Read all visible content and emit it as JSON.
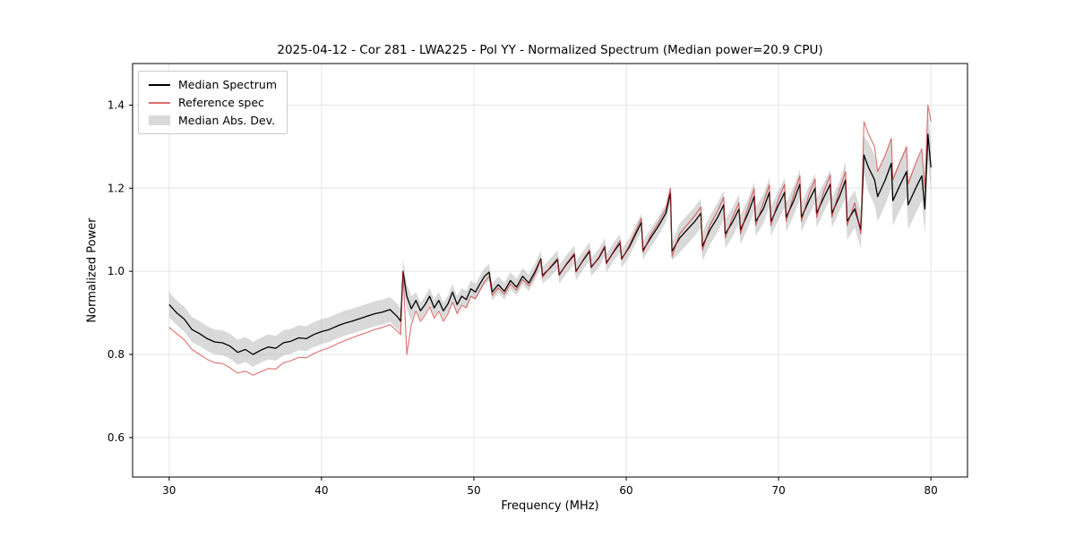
{
  "figure": {
    "title": "2025-04-12 - Cor 281 - LWA225 - Pol YY - Normalized Spectrum (Median power=20.9 CPU)",
    "xlabel": "Frequency (MHz)",
    "ylabel": "Normalized Power"
  },
  "legend": {
    "entries": [
      {
        "label": "Median Spectrum",
        "type": "line",
        "color": "#000000",
        "opacity": 1.0
      },
      {
        "label": "Reference spec",
        "type": "line",
        "color": "#cc2222",
        "opacity": 0.65
      },
      {
        "label": "Median Abs. Dev.",
        "type": "patch",
        "color": "#aaaaaa",
        "opacity": 0.45
      }
    ]
  },
  "chart_data": {
    "type": "line",
    "title": "2025-04-12 - Cor 281 - LWA225 - Pol YY - Normalized Spectrum (Median power=20.9 CPU)",
    "xlabel": "Frequency (MHz)",
    "ylabel": "Normalized Power",
    "xlim": [
      27.6,
      82.4
    ],
    "ylim": [
      0.505,
      1.5
    ],
    "xticks": [
      30,
      40,
      50,
      60,
      70,
      80
    ],
    "yticks": [
      0.6,
      0.8,
      1.0,
      1.2,
      1.4
    ],
    "grid": true,
    "grid_color": "#e5e5e5",
    "x": [
      30.0,
      30.5,
      31.0,
      31.5,
      32.0,
      32.5,
      33.0,
      33.5,
      34.0,
      34.5,
      35.0,
      35.5,
      36.0,
      36.5,
      37.0,
      37.5,
      38.0,
      38.5,
      39.0,
      39.5,
      40.0,
      40.5,
      41.0,
      41.5,
      42.0,
      42.5,
      43.0,
      43.5,
      44.0,
      44.5,
      45.0,
      45.2,
      45.35,
      45.6,
      45.9,
      46.2,
      46.5,
      46.8,
      47.1,
      47.4,
      47.7,
      48.0,
      48.3,
      48.6,
      48.9,
      49.2,
      49.5,
      49.8,
      50.1,
      50.4,
      50.7,
      51.0,
      51.2,
      51.6,
      52.0,
      52.4,
      52.8,
      53.2,
      53.6,
      54.0,
      54.4,
      54.5,
      55.0,
      55.5,
      55.6,
      56.1,
      56.6,
      56.7,
      57.2,
      57.6,
      57.7,
      58.2,
      58.6,
      58.7,
      59.2,
      59.6,
      59.7,
      60.2,
      60.6,
      61.0,
      61.1,
      61.6,
      62.1,
      62.6,
      62.9,
      63.0,
      63.5,
      64.0,
      64.5,
      64.9,
      65.0,
      65.5,
      66.0,
      66.4,
      66.5,
      67.0,
      67.4,
      67.5,
      68.0,
      68.4,
      68.5,
      69.0,
      69.4,
      69.5,
      70.0,
      70.4,
      70.5,
      71.0,
      71.4,
      71.5,
      72.0,
      72.4,
      72.5,
      73.0,
      73.4,
      73.5,
      74.0,
      74.4,
      74.5,
      75.0,
      75.4,
      75.6,
      75.9,
      76.3,
      76.5,
      77.0,
      77.4,
      77.5,
      78.0,
      78.4,
      78.5,
      79.0,
      79.4,
      79.6,
      79.8,
      80.0
    ],
    "series": [
      {
        "name": "Median Spectrum",
        "color": "#000000",
        "opacity": 1.0,
        "width": 1.3,
        "values": [
          0.92,
          0.9,
          0.885,
          0.86,
          0.85,
          0.838,
          0.83,
          0.828,
          0.82,
          0.805,
          0.812,
          0.8,
          0.81,
          0.818,
          0.815,
          0.828,
          0.832,
          0.84,
          0.838,
          0.848,
          0.855,
          0.86,
          0.868,
          0.875,
          0.88,
          0.886,
          0.892,
          0.898,
          0.902,
          0.908,
          0.89,
          0.88,
          1.0,
          0.94,
          0.91,
          0.93,
          0.905,
          0.92,
          0.94,
          0.912,
          0.93,
          0.905,
          0.922,
          0.95,
          0.92,
          0.94,
          0.932,
          0.958,
          0.95,
          0.97,
          0.988,
          0.998,
          0.95,
          0.968,
          0.952,
          0.978,
          0.962,
          0.988,
          0.972,
          0.998,
          1.03,
          0.99,
          1.008,
          1.028,
          0.992,
          1.018,
          1.04,
          1.0,
          1.028,
          1.048,
          1.01,
          1.032,
          1.058,
          1.02,
          1.048,
          1.068,
          1.03,
          1.058,
          1.088,
          1.118,
          1.05,
          1.08,
          1.108,
          1.14,
          1.188,
          1.048,
          1.08,
          1.1,
          1.12,
          1.14,
          1.06,
          1.1,
          1.13,
          1.16,
          1.09,
          1.12,
          1.15,
          1.1,
          1.14,
          1.18,
          1.12,
          1.15,
          1.19,
          1.12,
          1.16,
          1.19,
          1.13,
          1.17,
          1.21,
          1.13,
          1.17,
          1.2,
          1.14,
          1.18,
          1.21,
          1.14,
          1.18,
          1.22,
          1.12,
          1.15,
          1.1,
          1.28,
          1.25,
          1.22,
          1.18,
          1.22,
          1.26,
          1.17,
          1.21,
          1.24,
          1.16,
          1.2,
          1.23,
          1.15,
          1.33,
          1.25
        ]
      },
      {
        "name": "Reference spec",
        "color": "#cc2222",
        "opacity": 0.65,
        "width": 1.1,
        "values": [
          0.865,
          0.85,
          0.835,
          0.812,
          0.8,
          0.788,
          0.78,
          0.778,
          0.768,
          0.755,
          0.76,
          0.75,
          0.758,
          0.766,
          0.765,
          0.78,
          0.785,
          0.793,
          0.792,
          0.802,
          0.81,
          0.816,
          0.825,
          0.833,
          0.84,
          0.847,
          0.853,
          0.86,
          0.865,
          0.872,
          0.855,
          0.848,
          1.0,
          0.8,
          0.872,
          0.905,
          0.88,
          0.895,
          0.915,
          0.887,
          0.905,
          0.88,
          0.898,
          0.926,
          0.898,
          0.918,
          0.912,
          0.94,
          0.934,
          0.955,
          0.975,
          0.988,
          0.942,
          0.96,
          0.945,
          0.97,
          0.955,
          0.98,
          0.965,
          0.992,
          1.028,
          0.985,
          1.01,
          1.032,
          0.99,
          1.02,
          1.044,
          0.998,
          1.03,
          1.052,
          1.008,
          1.034,
          1.062,
          1.018,
          1.05,
          1.074,
          1.028,
          1.062,
          1.094,
          1.128,
          1.045,
          1.086,
          1.116,
          1.15,
          1.2,
          1.035,
          1.09,
          1.112,
          1.134,
          1.155,
          1.05,
          1.112,
          1.145,
          1.178,
          1.08,
          1.132,
          1.165,
          1.09,
          1.155,
          1.198,
          1.11,
          1.165,
          1.208,
          1.11,
          1.175,
          1.21,
          1.12,
          1.185,
          1.23,
          1.12,
          1.185,
          1.222,
          1.13,
          1.195,
          1.232,
          1.13,
          1.196,
          1.24,
          1.11,
          1.165,
          1.09,
          1.36,
          1.33,
          1.3,
          1.24,
          1.28,
          1.32,
          1.22,
          1.265,
          1.3,
          1.21,
          1.26,
          1.295,
          1.2,
          1.4,
          1.36
        ]
      }
    ],
    "band": {
      "name": "Median Abs. Dev.",
      "around_series": "Median Spectrum",
      "color": "#aaaaaa",
      "opacity": 0.45,
      "half_width": [
        0.03,
        0.03,
        0.03,
        0.03,
        0.03,
        0.03,
        0.03,
        0.03,
        0.03,
        0.03,
        0.03,
        0.03,
        0.03,
        0.03,
        0.03,
        0.03,
        0.03,
        0.03,
        0.03,
        0.03,
        0.03,
        0.03,
        0.03,
        0.03,
        0.03,
        0.03,
        0.03,
        0.03,
        0.03,
        0.03,
        0.03,
        0.03,
        0.03,
        0.03,
        0.03,
        0.02,
        0.02,
        0.02,
        0.02,
        0.02,
        0.02,
        0.02,
        0.02,
        0.02,
        0.02,
        0.02,
        0.02,
        0.02,
        0.02,
        0.02,
        0.02,
        0.02,
        0.02,
        0.02,
        0.02,
        0.02,
        0.02,
        0.02,
        0.02,
        0.02,
        0.02,
        0.02,
        0.022,
        0.022,
        0.022,
        0.022,
        0.022,
        0.022,
        0.022,
        0.022,
        0.022,
        0.022,
        0.022,
        0.022,
        0.022,
        0.022,
        0.022,
        0.022,
        0.022,
        0.022,
        0.022,
        0.022,
        0.022,
        0.022,
        0.022,
        0.022,
        0.035,
        0.035,
        0.035,
        0.035,
        0.035,
        0.035,
        0.035,
        0.035,
        0.035,
        0.035,
        0.035,
        0.035,
        0.035,
        0.035,
        0.035,
        0.035,
        0.035,
        0.035,
        0.035,
        0.035,
        0.035,
        0.035,
        0.035,
        0.035,
        0.035,
        0.035,
        0.035,
        0.035,
        0.035,
        0.035,
        0.035,
        0.045,
        0.045,
        0.045,
        0.045,
        0.045,
        0.06,
        0.06,
        0.06,
        0.06,
        0.06,
        0.06,
        0.06,
        0.06,
        0.06,
        0.06,
        0.06,
        0.06,
        0.06,
        0.06
      ]
    }
  }
}
